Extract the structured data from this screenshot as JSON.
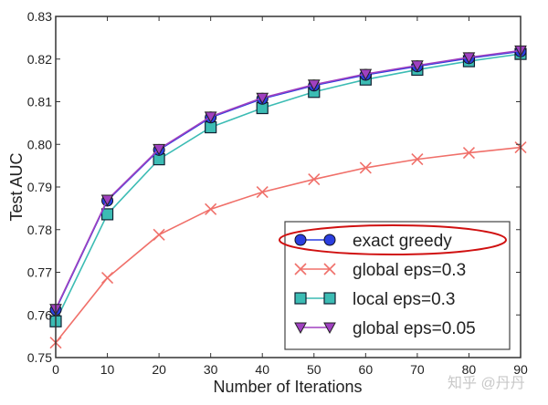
{
  "chart_data": {
    "type": "line",
    "title": "",
    "xlabel": "Number of Iterations",
    "ylabel": "Test AUC",
    "xlim": [
      0,
      90
    ],
    "ylim": [
      0.75,
      0.83
    ],
    "grid": false,
    "legend_placement": "bottom-right",
    "x": [
      0,
      10,
      20,
      30,
      40,
      50,
      60,
      70,
      80,
      90
    ],
    "xticks": [
      "0",
      "10",
      "20",
      "30",
      "40",
      "50",
      "60",
      "70",
      "80",
      "90"
    ],
    "yticks": [
      "0.75",
      "0.76",
      "0.77",
      "0.78",
      "0.79",
      "0.80",
      "0.81",
      "0.82",
      "0.83"
    ],
    "series": [
      {
        "name": "exact greedy",
        "marker": "circle",
        "color": "#2b3fe0",
        "values": [
          0.7612,
          0.7868,
          0.7987,
          0.8063,
          0.8107,
          0.8138,
          0.8163,
          0.8183,
          0.8202,
          0.8218
        ]
      },
      {
        "name": "global eps=0.3",
        "marker": "x",
        "color": "#f0706a",
        "values": [
          0.7535,
          0.7687,
          0.7788,
          0.7848,
          0.7888,
          0.7918,
          0.7945,
          0.7965,
          0.798,
          0.7993
        ]
      },
      {
        "name": "local eps=0.3",
        "marker": "square",
        "color": "#3cbcb4",
        "values": [
          0.7585,
          0.7836,
          0.7965,
          0.804,
          0.8085,
          0.8123,
          0.8152,
          0.8175,
          0.8195,
          0.8212
        ]
      },
      {
        "name": "global eps=0.05",
        "marker": "triangle-down",
        "color": "#a040c0",
        "values": [
          0.7614,
          0.787,
          0.7989,
          0.8065,
          0.8109,
          0.814,
          0.8165,
          0.8185,
          0.8204,
          0.822
        ]
      }
    ],
    "annotations": [
      "red hand-drawn ellipse around legend entry 'exact greedy'"
    ]
  },
  "watermark": "知乎 @丹丹"
}
